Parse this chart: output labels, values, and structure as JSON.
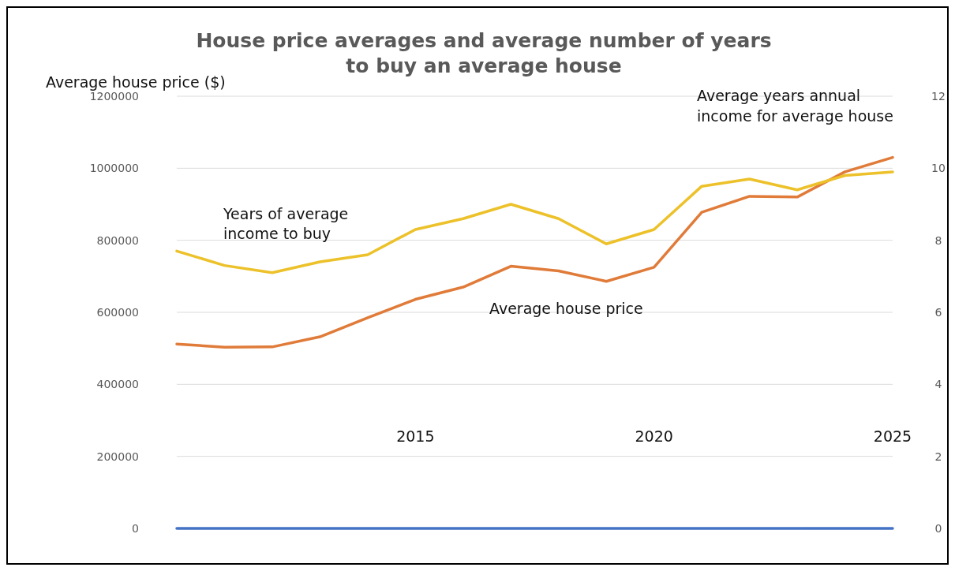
{
  "chart_data": {
    "type": "line",
    "title": "House price averages and average number of years to buy an average house",
    "ylabel": "Average house price ($)",
    "y2label": "Average years annual income for average house",
    "x": [
      2010,
      2011,
      2012,
      2013,
      2014,
      2015,
      2016,
      2017,
      2018,
      2019,
      2020,
      2021,
      2022,
      2023,
      2024,
      2025
    ],
    "xlim": [
      2010,
      2025
    ],
    "xticks": [
      2015,
      2020,
      2025
    ],
    "ylim": [
      0,
      1200000
    ],
    "yticks": [
      0,
      200000,
      400000,
      600000,
      800000,
      1000000,
      1200000
    ],
    "y2lim": [
      0,
      12
    ],
    "y2ticks": [
      0,
      2,
      4,
      6,
      8,
      10,
      12
    ],
    "grid": "y",
    "line_style": "solid",
    "marker": "none",
    "series": [
      {
        "color": "#4472c4",
        "values": [
          0,
          0,
          0,
          0,
          0,
          0,
          0,
          0,
          0,
          0,
          0,
          0,
          0,
          0,
          0,
          0
        ]
      },
      {
        "name": "Average house price",
        "color": "#e07b39",
        "values": [
          512000,
          503000,
          504000,
          532000,
          585000,
          636000,
          670000,
          728000,
          715000,
          686000,
          725000,
          878000,
          922000,
          920000,
          990000,
          1030000
        ]
      },
      {
        "name": "Years of average income to buy",
        "color": "#ecc12a",
        "axis": "y2",
        "values": [
          7.7,
          7.3,
          7.1,
          7.4,
          7.6,
          8.3,
          8.6,
          9.0,
          8.6,
          7.9,
          8.3,
          9.5,
          9.7,
          9.4,
          9.8,
          9.9
        ]
      }
    ]
  }
}
